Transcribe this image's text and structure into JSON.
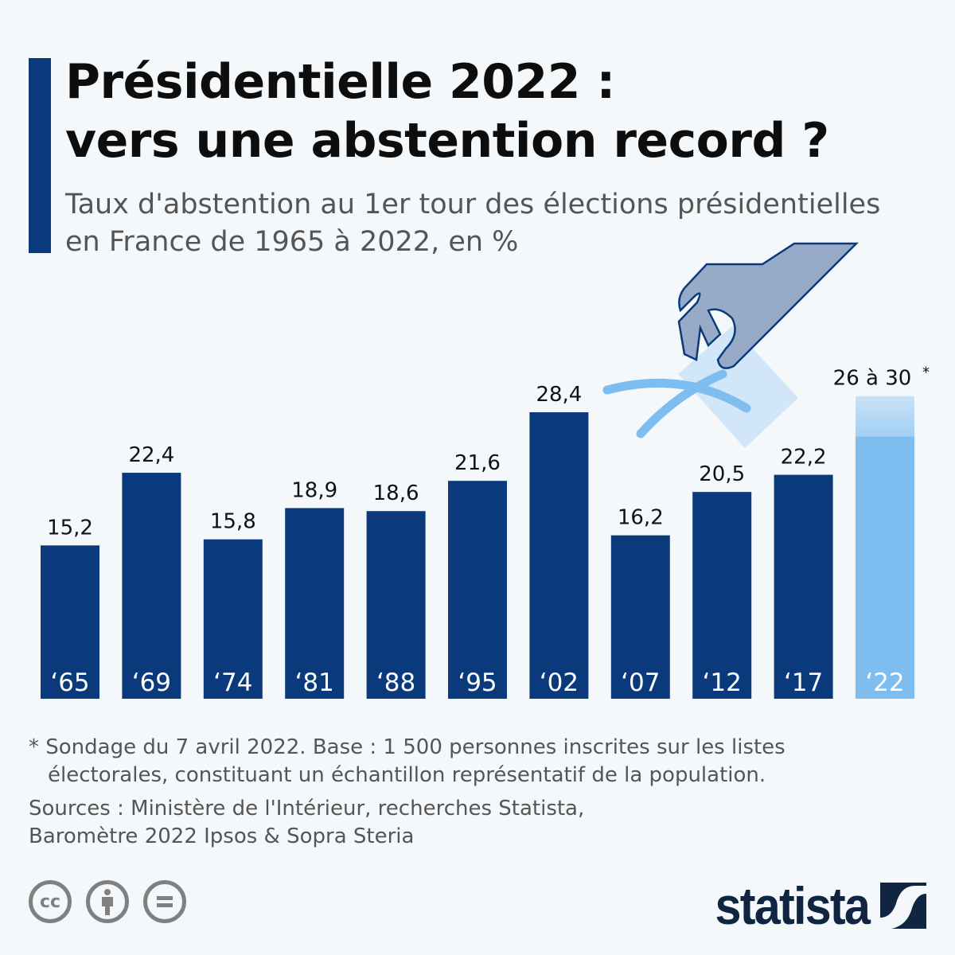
{
  "header": {
    "title_line1": "Présidentielle 2022 :",
    "title_line2": "vers une abstention record ?",
    "subtitle_line1": "Taux d'abstention au 1er tour des élections présidentielles",
    "subtitle_line2": "en France de 1965 à 2022, en %"
  },
  "chart_data": {
    "type": "bar",
    "title": "Taux d'abstention au 1er tour des élections présidentielles en France de 1965 à 2022, en %",
    "categories": [
      "‘65",
      "‘69",
      "‘74",
      "‘81",
      "‘88",
      "‘95",
      "‘02",
      "‘07",
      "‘12",
      "‘17",
      "‘22"
    ],
    "values": [
      15.2,
      22.4,
      15.8,
      18.9,
      18.6,
      21.6,
      28.4,
      16.2,
      20.5,
      22.2,
      null
    ],
    "labels": [
      "15,2",
      "22,4",
      "15,8",
      "18,9",
      "18,6",
      "21,6",
      "28,4",
      "16,2",
      "20,5",
      "22,2",
      "26 à 30 *"
    ],
    "range_last": [
      26,
      30
    ],
    "ylim": [
      0,
      30
    ],
    "grid": false,
    "colors": {
      "bar": "#0a3a7c",
      "projection": "#7dbdf0",
      "projection_light": "#c9e2f7"
    }
  },
  "footer": {
    "note_line1": "* Sondage du 7 avril 2022. Base : 1 500 personnes inscrites sur les listes",
    "note_line2": "électorales, constituant un échantillon représentatif de la population.",
    "sources_line1": "Sources : Ministère de l'Intérieur, recherches Statista,",
    "sources_line2": "Baromètre 2022 Ipsos & Sopra Steria",
    "license_icons": [
      "cc-icon",
      "attribution-icon",
      "no-derivatives-icon"
    ],
    "brand": "statista"
  }
}
